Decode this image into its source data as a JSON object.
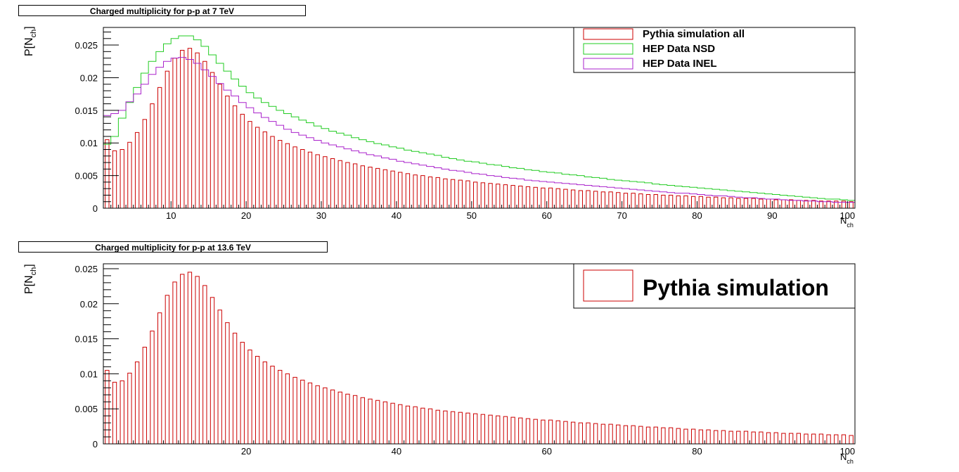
{
  "panels": [
    {
      "title": "Charged multiplicity for p-p at 7 TeV",
      "ylabel": "P[N",
      "ylabel_sub": "ch",
      "ylabel_close": "]",
      "xlabel": "N",
      "xlabel_sub": "ch",
      "legend": [
        {
          "label": "Pythia simulation all",
          "color": "#cc0000"
        },
        {
          "label": "HEP Data NSD",
          "color": "#22cc22"
        },
        {
          "label": "HEP Data INEL",
          "color": "#aa22cc"
        }
      ]
    },
    {
      "title": "Charged multiplicity for p-p at 13.6 TeV",
      "ylabel": "P[N",
      "ylabel_sub": "ch",
      "ylabel_close": "]",
      "xlabel": "N",
      "xlabel_sub": "ch",
      "legend": [
        {
          "label": "Pythia simulation",
          "color": "#cc0000"
        }
      ]
    }
  ],
  "chart_data": [
    {
      "type": "bar",
      "title": "Charged multiplicity for p-p at 7 TeV",
      "xlabel": "N_ch",
      "ylabel": "P[N_ch]",
      "xlim": [
        1,
        101
      ],
      "ylim": [
        0,
        0.0277
      ],
      "xticks": [
        10,
        20,
        30,
        40,
        50,
        60,
        70,
        80,
        90,
        100
      ],
      "yticks": [
        0,
        0.005,
        0.01,
        0.015,
        0.02,
        0.025
      ],
      "ytick_labels": [
        "0",
        "0.005",
        "0.01",
        "0.015",
        "0.02",
        "0.025"
      ],
      "grid": false,
      "legend_position": "top-right",
      "series": [
        {
          "name": "Pythia simulation all",
          "style": "bars",
          "color": "#cc0000",
          "x": [
            1,
            2,
            3,
            4,
            5,
            6,
            7,
            8,
            9,
            10,
            11,
            12,
            13,
            14,
            15,
            16,
            17,
            18,
            19,
            20,
            21,
            22,
            23,
            24,
            25,
            26,
            27,
            28,
            29,
            30,
            31,
            32,
            33,
            34,
            35,
            36,
            37,
            38,
            39,
            40,
            41,
            42,
            43,
            44,
            45,
            46,
            47,
            48,
            49,
            50,
            51,
            52,
            53,
            54,
            55,
            56,
            57,
            58,
            59,
            60,
            61,
            62,
            63,
            64,
            65,
            66,
            67,
            68,
            69,
            70,
            71,
            72,
            73,
            74,
            75,
            76,
            77,
            78,
            79,
            80,
            81,
            82,
            83,
            84,
            85,
            86,
            87,
            88,
            89,
            90,
            91,
            92,
            93,
            94,
            95,
            96,
            97,
            98,
            99,
            100
          ],
          "values": [
            0.0105,
            0.0088,
            0.009,
            0.0101,
            0.0116,
            0.0136,
            0.016,
            0.0185,
            0.021,
            0.023,
            0.0242,
            0.0245,
            0.0238,
            0.0225,
            0.0208,
            0.019,
            0.0172,
            0.0157,
            0.0144,
            0.0133,
            0.0124,
            0.0117,
            0.011,
            0.0104,
            0.0099,
            0.0094,
            0.009,
            0.0086,
            0.0082,
            0.0079,
            0.0076,
            0.0073,
            0.007,
            0.0068,
            0.0065,
            0.0063,
            0.0061,
            0.0059,
            0.0057,
            0.0055,
            0.0053,
            0.0051,
            0.005,
            0.0048,
            0.0047,
            0.0045,
            0.0044,
            0.0043,
            0.0042,
            0.004,
            0.0039,
            0.0038,
            0.0037,
            0.0036,
            0.0035,
            0.0034,
            0.0033,
            0.0032,
            0.0031,
            0.0031,
            0.003,
            0.0029,
            0.0028,
            0.0027,
            0.0027,
            0.0026,
            0.0025,
            0.0025,
            0.0024,
            0.0023,
            0.0023,
            0.0022,
            0.0021,
            0.0021,
            0.002,
            0.002,
            0.0019,
            0.0019,
            0.0018,
            0.0018,
            0.0017,
            0.0017,
            0.0016,
            0.0016,
            0.0015,
            0.0015,
            0.0015,
            0.0014,
            0.0014,
            0.0013,
            0.0013,
            0.0013,
            0.0012,
            0.0012,
            0.0012,
            0.0011,
            0.0011,
            0.0011,
            0.0011,
            0.001
          ]
        },
        {
          "name": "HEP Data NSD",
          "style": "step",
          "color": "#22cc22",
          "x": [
            1,
            2,
            3,
            4,
            5,
            6,
            7,
            8,
            9,
            10,
            11,
            12,
            13,
            14,
            15,
            16,
            17,
            18,
            19,
            20,
            21,
            22,
            23,
            24,
            25,
            26,
            27,
            28,
            29,
            30,
            31,
            32,
            33,
            34,
            35,
            36,
            37,
            38,
            39,
            40,
            41,
            42,
            43,
            44,
            45,
            46,
            47,
            48,
            49,
            50,
            51,
            52,
            53,
            54,
            55,
            56,
            57,
            58,
            59,
            60,
            61,
            62,
            63,
            64,
            65,
            66,
            67,
            68,
            69,
            70,
            71,
            72,
            73,
            74,
            75,
            76,
            77,
            78,
            79,
            80,
            81,
            82,
            83,
            84,
            85,
            86,
            87,
            88,
            89,
            90,
            91,
            92,
            93,
            94,
            95,
            96,
            97,
            98,
            99,
            100
          ],
          "values": [
            0.0098,
            0.011,
            0.0138,
            0.0162,
            0.0185,
            0.0207,
            0.0225,
            0.024,
            0.0252,
            0.026,
            0.0264,
            0.0264,
            0.0258,
            0.0248,
            0.0235,
            0.0222,
            0.021,
            0.0198,
            0.0187,
            0.0177,
            0.0169,
            0.0162,
            0.0156,
            0.015,
            0.0145,
            0.014,
            0.0135,
            0.0131,
            0.0126,
            0.0122,
            0.0118,
            0.0115,
            0.0112,
            0.0108,
            0.0105,
            0.0102,
            0.0099,
            0.0097,
            0.0094,
            0.0092,
            0.0089,
            0.0087,
            0.0085,
            0.0083,
            0.0081,
            0.0078,
            0.0076,
            0.0074,
            0.0072,
            0.0071,
            0.0069,
            0.0067,
            0.0066,
            0.0064,
            0.0062,
            0.0061,
            0.0059,
            0.0058,
            0.0056,
            0.0055,
            0.0054,
            0.0052,
            0.0051,
            0.005,
            0.0048,
            0.0047,
            0.0046,
            0.0044,
            0.0043,
            0.0042,
            0.0041,
            0.004,
            0.0039,
            0.0037,
            0.0036,
            0.0035,
            0.0034,
            0.0033,
            0.0032,
            0.0031,
            0.003,
            0.0029,
            0.0028,
            0.0027,
            0.0026,
            0.0025,
            0.0024,
            0.0023,
            0.0022,
            0.0021,
            0.002,
            0.0019,
            0.0018,
            0.0017,
            0.0016,
            0.0015,
            0.0014,
            0.0014,
            0.0013,
            0.0012
          ]
        },
        {
          "name": "HEP Data INEL",
          "style": "step",
          "color": "#aa22cc",
          "x": [
            1,
            2,
            3,
            4,
            5,
            6,
            7,
            8,
            9,
            10,
            11,
            12,
            13,
            14,
            15,
            16,
            17,
            18,
            19,
            20,
            21,
            22,
            23,
            24,
            25,
            26,
            27,
            28,
            29,
            30,
            31,
            32,
            33,
            34,
            35,
            36,
            37,
            38,
            39,
            40,
            41,
            42,
            43,
            44,
            45,
            46,
            47,
            48,
            49,
            50,
            51,
            52,
            53,
            54,
            55,
            56,
            57,
            58,
            59,
            60,
            61,
            62,
            63,
            64,
            65,
            66,
            67,
            68,
            69,
            70,
            71,
            72,
            73,
            74,
            75,
            76,
            77,
            78,
            79,
            80,
            81,
            82,
            83,
            84,
            85,
            86,
            87,
            88,
            89,
            90,
            91,
            92,
            93,
            94,
            95,
            96,
            97,
            98,
            99,
            100
          ],
          "values": [
            0.0142,
            0.0145,
            0.015,
            0.0163,
            0.0175,
            0.019,
            0.0205,
            0.0216,
            0.0225,
            0.023,
            0.0231,
            0.0228,
            0.0222,
            0.0212,
            0.0202,
            0.0191,
            0.0181,
            0.0172,
            0.0162,
            0.0154,
            0.0146,
            0.0139,
            0.0133,
            0.0127,
            0.0121,
            0.0116,
            0.0112,
            0.0108,
            0.0104,
            0.01,
            0.0097,
            0.0094,
            0.0091,
            0.0088,
            0.0085,
            0.0082,
            0.008,
            0.0077,
            0.0075,
            0.0072,
            0.007,
            0.0068,
            0.0066,
            0.0064,
            0.0062,
            0.006,
            0.0058,
            0.0057,
            0.0055,
            0.0053,
            0.0052,
            0.005,
            0.0049,
            0.0047,
            0.0046,
            0.0045,
            0.0043,
            0.0042,
            0.0041,
            0.004,
            0.0039,
            0.0038,
            0.0037,
            0.0036,
            0.0035,
            0.0034,
            0.0033,
            0.0032,
            0.0031,
            0.003,
            0.0029,
            0.0028,
            0.0027,
            0.0026,
            0.0025,
            0.0024,
            0.0023,
            0.0023,
            0.0022,
            0.0021,
            0.002,
            0.0019,
            0.0019,
            0.0018,
            0.0017,
            0.0016,
            0.0016,
            0.0015,
            0.0014,
            0.0014,
            0.0013,
            0.0012,
            0.0012,
            0.0011,
            0.0011,
            0.001,
            0.001,
            0.0009,
            0.0009,
            0.0009
          ]
        }
      ]
    },
    {
      "type": "bar",
      "title": "Charged multiplicity for p-p at 13.6 TeV",
      "xlabel": "N_ch",
      "ylabel": "P[N_ch]",
      "xlim": [
        1,
        101
      ],
      "ylim": [
        0,
        0.0257
      ],
      "xticks": [
        20,
        40,
        60,
        80,
        100
      ],
      "yticks": [
        0,
        0.005,
        0.01,
        0.015,
        0.02,
        0.025
      ],
      "ytick_labels": [
        "0",
        "0.005",
        "0.01",
        "0.015",
        "0.02",
        "0.025"
      ],
      "grid": false,
      "legend_position": "top-right",
      "series": [
        {
          "name": "Pythia simulation",
          "style": "bars",
          "color": "#cc0000",
          "x": [
            1,
            2,
            3,
            4,
            5,
            6,
            7,
            8,
            9,
            10,
            11,
            12,
            13,
            14,
            15,
            16,
            17,
            18,
            19,
            20,
            21,
            22,
            23,
            24,
            25,
            26,
            27,
            28,
            29,
            30,
            31,
            32,
            33,
            34,
            35,
            36,
            37,
            38,
            39,
            40,
            41,
            42,
            43,
            44,
            45,
            46,
            47,
            48,
            49,
            50,
            51,
            52,
            53,
            54,
            55,
            56,
            57,
            58,
            59,
            60,
            61,
            62,
            63,
            64,
            65,
            66,
            67,
            68,
            69,
            70,
            71,
            72,
            73,
            74,
            75,
            76,
            77,
            78,
            79,
            80,
            81,
            82,
            83,
            84,
            85,
            86,
            87,
            88,
            89,
            90,
            91,
            92,
            93,
            94,
            95,
            96,
            97,
            98,
            99,
            100
          ],
          "values": [
            0.0105,
            0.0088,
            0.009,
            0.0101,
            0.0117,
            0.0138,
            0.0161,
            0.0187,
            0.0212,
            0.0231,
            0.0242,
            0.0245,
            0.0239,
            0.0226,
            0.0209,
            0.0191,
            0.0173,
            0.0158,
            0.0145,
            0.0134,
            0.0125,
            0.0117,
            0.0111,
            0.0105,
            0.01,
            0.0095,
            0.0091,
            0.0087,
            0.0083,
            0.008,
            0.0077,
            0.0074,
            0.0071,
            0.0069,
            0.0066,
            0.0064,
            0.0062,
            0.006,
            0.0058,
            0.0056,
            0.0054,
            0.0053,
            0.0051,
            0.005,
            0.0048,
            0.0047,
            0.0046,
            0.0045,
            0.0044,
            0.0043,
            0.0042,
            0.0041,
            0.004,
            0.0039,
            0.0038,
            0.0037,
            0.0036,
            0.0035,
            0.0034,
            0.0034,
            0.0033,
            0.0032,
            0.0031,
            0.003,
            0.003,
            0.0029,
            0.0028,
            0.0028,
            0.0027,
            0.0026,
            0.0026,
            0.0025,
            0.0024,
            0.0024,
            0.0023,
            0.0023,
            0.0022,
            0.0021,
            0.0021,
            0.002,
            0.002,
            0.0019,
            0.0019,
            0.0018,
            0.0018,
            0.0018,
            0.0017,
            0.0017,
            0.0016,
            0.0016,
            0.0015,
            0.0015,
            0.0015,
            0.0014,
            0.0014,
            0.0014,
            0.0013,
            0.0013,
            0.0013,
            0.0012
          ]
        }
      ]
    }
  ]
}
